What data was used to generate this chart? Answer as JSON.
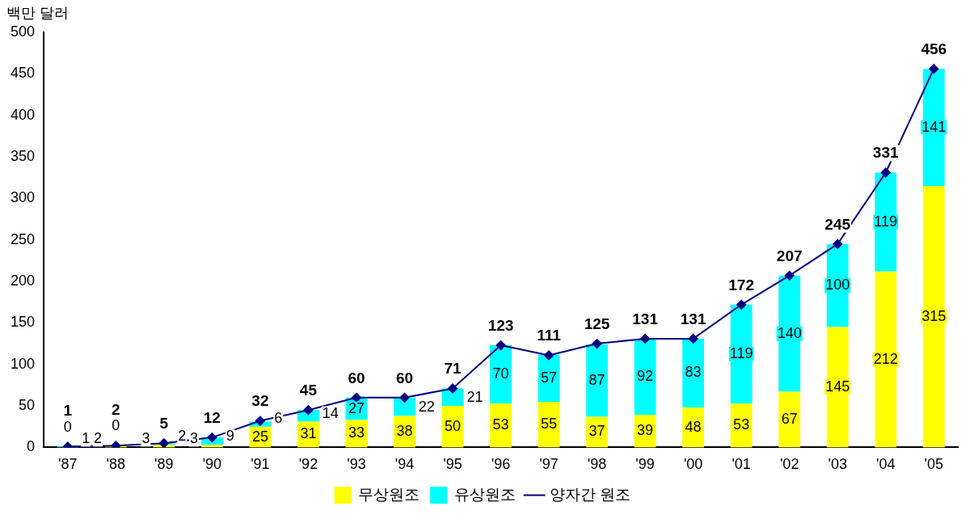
{
  "chart_data": {
    "type": "bar",
    "stacked": true,
    "ylabel": "백만 달러",
    "categories": [
      "'87",
      "'88",
      "'89",
      "'90",
      "'91",
      "'92",
      "'93",
      "'94",
      "'95",
      "'96",
      "'97",
      "'98",
      "'99",
      "'00",
      "'01",
      "'02",
      "'03",
      "'04",
      "'05"
    ],
    "series": [
      {
        "name": "무상원조",
        "color": "#ffff00",
        "values": [
          0,
          2,
          3,
          3,
          25,
          31,
          33,
          38,
          50,
          53,
          55,
          37,
          39,
          48,
          53,
          67,
          145,
          212,
          315
        ]
      },
      {
        "name": "유상원조",
        "color": "#00ffff",
        "values": [
          1,
          0,
          2,
          9,
          6,
          14,
          27,
          22,
          21,
          70,
          57,
          87,
          92,
          83,
          119,
          140,
          100,
          119,
          141
        ]
      },
      {
        "name": "양자간 원조",
        "type": "line",
        "color": "#000080",
        "marker": "diamond",
        "values": [
          1,
          2,
          5,
          12,
          32,
          45,
          60,
          60,
          71,
          123,
          111,
          125,
          131,
          131,
          172,
          207,
          245,
          331,
          456
        ]
      }
    ],
    "ylim": [
      0,
      500
    ],
    "yticks": [
      0,
      50,
      100,
      150,
      200,
      250,
      300,
      350,
      400,
      450,
      500
    ],
    "grid": false,
    "legend": "bottom",
    "data_labels": true
  }
}
